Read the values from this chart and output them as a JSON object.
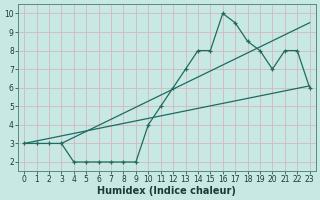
{
  "title": "",
  "xlabel": "Humidex (Indice chaleur)",
  "bg_color": "#c8e8e4",
  "grid_color": "#d4b8c0",
  "line_color": "#1e6b60",
  "x_humidex": [
    0,
    1,
    2,
    3,
    4,
    5,
    6,
    7,
    8,
    9,
    10,
    11,
    12,
    13,
    14,
    15,
    16,
    17,
    18,
    19,
    20,
    21,
    22,
    23
  ],
  "y_curve": [
    3,
    3,
    3,
    3,
    2,
    2,
    2,
    2,
    2,
    2,
    4,
    5,
    6,
    7,
    8,
    8,
    10,
    9.5,
    8.5,
    8,
    7,
    8,
    8,
    6
  ],
  "line1": [
    [
      0,
      3
    ],
    [
      23,
      6.1
    ]
  ],
  "line2": [
    [
      3,
      3
    ],
    [
      23,
      9.5
    ]
  ],
  "xlim": [
    -0.5,
    23.5
  ],
  "ylim": [
    1.5,
    10.5
  ],
  "xticks": [
    0,
    1,
    2,
    3,
    4,
    5,
    6,
    7,
    8,
    9,
    10,
    11,
    12,
    13,
    14,
    15,
    16,
    17,
    18,
    19,
    20,
    21,
    22,
    23
  ],
  "yticks": [
    2,
    3,
    4,
    5,
    6,
    7,
    8,
    9,
    10
  ],
  "tick_fontsize": 5.5,
  "label_fontsize": 7.0,
  "line_width": 0.9,
  "marker_size": 3.0
}
